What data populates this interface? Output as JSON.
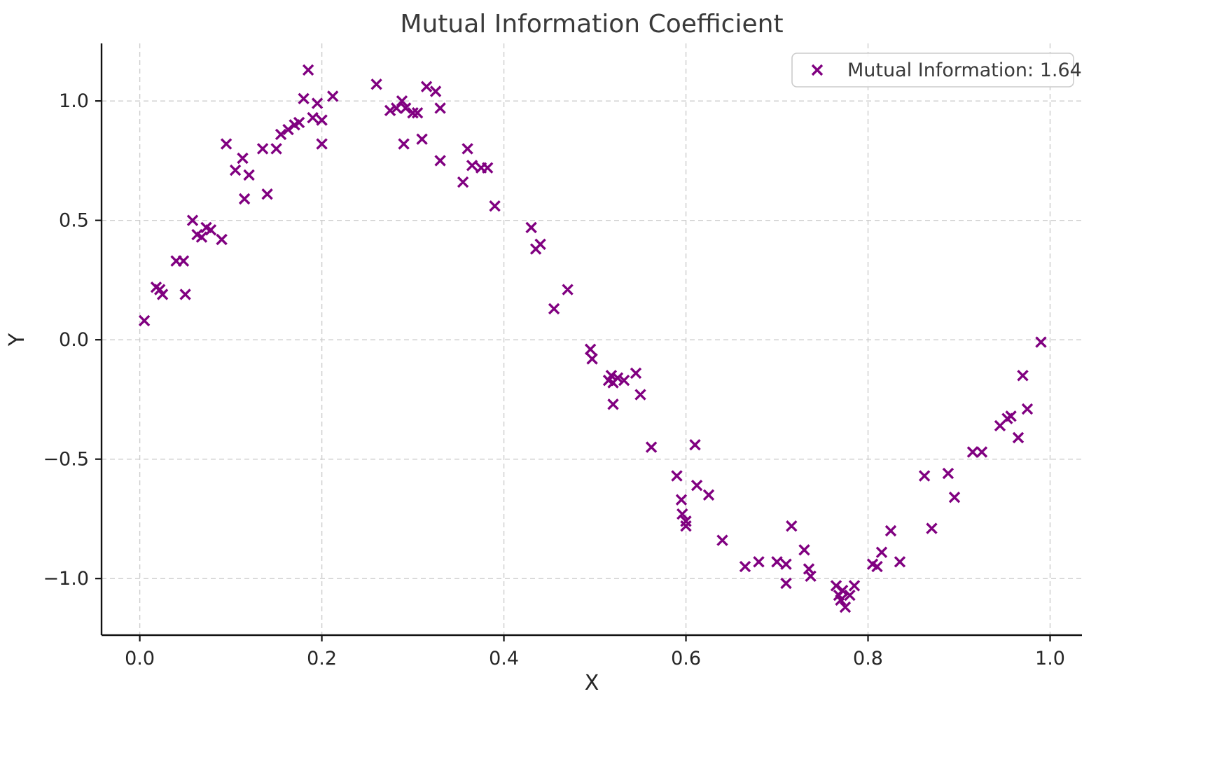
{
  "chart_data": {
    "type": "scatter",
    "title": "Mutual Information Coefficient",
    "xlabel": "X",
    "ylabel": "Y",
    "marker": "x",
    "grid": true,
    "legend_position": "upper right",
    "xlim": [
      -0.042,
      1.035
    ],
    "ylim": [
      -1.237,
      1.241
    ],
    "xticks": [
      0.0,
      0.2,
      0.4,
      0.6,
      0.8,
      1.0
    ],
    "xtick_labels": [
      "0.0",
      "0.2",
      "0.4",
      "0.6",
      "0.8",
      "1.0"
    ],
    "yticks": [
      -1.0,
      -0.5,
      0.0,
      0.5,
      1.0
    ],
    "ytick_labels": [
      "−1.0",
      "−0.5",
      "0.0",
      "0.5",
      "1.0"
    ],
    "colors": {
      "marker": "#800080",
      "grid": "#cccccc",
      "spine": "#111111",
      "text": "#3a3a3a",
      "legend_border": "#cccccc",
      "legend_fill": "#ffffff"
    },
    "series": [
      {
        "name": "Mutual Information: 1.64",
        "color": "#800080",
        "marker": "x",
        "points": [
          [
            0.005,
            0.08
          ],
          [
            0.018,
            0.22
          ],
          [
            0.022,
            0.21
          ],
          [
            0.025,
            0.19
          ],
          [
            0.04,
            0.33
          ],
          [
            0.048,
            0.33
          ],
          [
            0.05,
            0.19
          ],
          [
            0.058,
            0.5
          ],
          [
            0.063,
            0.44
          ],
          [
            0.068,
            0.43
          ],
          [
            0.073,
            0.47
          ],
          [
            0.078,
            0.46
          ],
          [
            0.09,
            0.42
          ],
          [
            0.095,
            0.82
          ],
          [
            0.105,
            0.71
          ],
          [
            0.113,
            0.76
          ],
          [
            0.115,
            0.59
          ],
          [
            0.12,
            0.69
          ],
          [
            0.135,
            0.8
          ],
          [
            0.14,
            0.61
          ],
          [
            0.15,
            0.8
          ],
          [
            0.155,
            0.86
          ],
          [
            0.163,
            0.88
          ],
          [
            0.17,
            0.9
          ],
          [
            0.175,
            0.91
          ],
          [
            0.18,
            1.01
          ],
          [
            0.185,
            1.13
          ],
          [
            0.19,
            0.93
          ],
          [
            0.195,
            0.99
          ],
          [
            0.2,
            0.92
          ],
          [
            0.2,
            0.82
          ],
          [
            0.212,
            1.02
          ],
          [
            0.26,
            1.07
          ],
          [
            0.275,
            0.96
          ],
          [
            0.282,
            0.97
          ],
          [
            0.288,
            1.0
          ],
          [
            0.292,
            0.97
          ],
          [
            0.29,
            0.82
          ],
          [
            0.3,
            0.95
          ],
          [
            0.305,
            0.95
          ],
          [
            0.31,
            0.84
          ],
          [
            0.315,
            1.06
          ],
          [
            0.325,
            1.04
          ],
          [
            0.33,
            0.97
          ],
          [
            0.33,
            0.75
          ],
          [
            0.355,
            0.66
          ],
          [
            0.36,
            0.8
          ],
          [
            0.365,
            0.73
          ],
          [
            0.375,
            0.72
          ],
          [
            0.382,
            0.72
          ],
          [
            0.39,
            0.56
          ],
          [
            0.43,
            0.47
          ],
          [
            0.435,
            0.38
          ],
          [
            0.44,
            0.4
          ],
          [
            0.455,
            0.13
          ],
          [
            0.47,
            0.21
          ],
          [
            0.495,
            -0.04
          ],
          [
            0.497,
            -0.08
          ],
          [
            0.515,
            -0.17
          ],
          [
            0.518,
            -0.15
          ],
          [
            0.52,
            -0.18
          ],
          [
            0.525,
            -0.16
          ],
          [
            0.52,
            -0.27
          ],
          [
            0.532,
            -0.17
          ],
          [
            0.545,
            -0.14
          ],
          [
            0.55,
            -0.23
          ],
          [
            0.562,
            -0.45
          ],
          [
            0.59,
            -0.57
          ],
          [
            0.595,
            -0.67
          ],
          [
            0.596,
            -0.73
          ],
          [
            0.6,
            -0.76
          ],
          [
            0.6,
            -0.78
          ],
          [
            0.61,
            -0.44
          ],
          [
            0.612,
            -0.61
          ],
          [
            0.625,
            -0.65
          ],
          [
            0.64,
            -0.84
          ],
          [
            0.665,
            -0.95
          ],
          [
            0.68,
            -0.93
          ],
          [
            0.7,
            -0.93
          ],
          [
            0.71,
            -1.02
          ],
          [
            0.71,
            -0.94
          ],
          [
            0.716,
            -0.78
          ],
          [
            0.73,
            -0.88
          ],
          [
            0.735,
            -0.96
          ],
          [
            0.737,
            -0.99
          ],
          [
            0.765,
            -1.03
          ],
          [
            0.768,
            -1.07
          ],
          [
            0.77,
            -1.09
          ],
          [
            0.772,
            -1.05
          ],
          [
            0.775,
            -1.12
          ],
          [
            0.78,
            -1.07
          ],
          [
            0.785,
            -1.03
          ],
          [
            0.805,
            -0.94
          ],
          [
            0.81,
            -0.95
          ],
          [
            0.815,
            -0.89
          ],
          [
            0.825,
            -0.8
          ],
          [
            0.835,
            -0.93
          ],
          [
            0.862,
            -0.57
          ],
          [
            0.87,
            -0.79
          ],
          [
            0.888,
            -0.56
          ],
          [
            0.895,
            -0.66
          ],
          [
            0.915,
            -0.47
          ],
          [
            0.925,
            -0.47
          ],
          [
            0.945,
            -0.36
          ],
          [
            0.953,
            -0.33
          ],
          [
            0.957,
            -0.32
          ],
          [
            0.965,
            -0.41
          ],
          [
            0.97,
            -0.15
          ],
          [
            0.975,
            -0.29
          ],
          [
            0.99,
            -0.01
          ]
        ]
      }
    ]
  }
}
